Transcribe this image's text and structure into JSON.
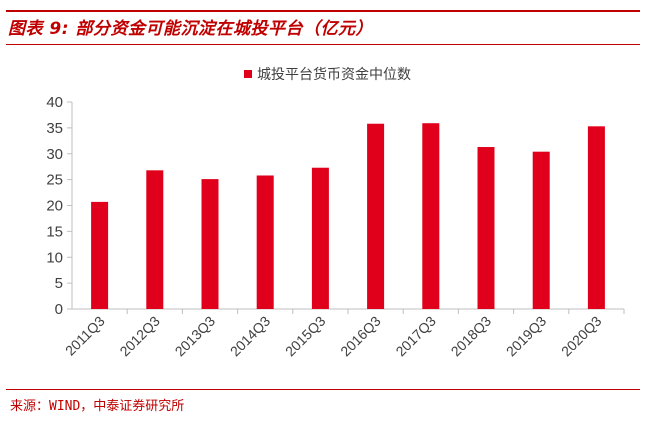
{
  "figure": {
    "title": "图表 9:  部分资金可能沉淀在城投平台（亿元）",
    "source": "来源：WIND，中泰证券研究所"
  },
  "colors": {
    "accent": "#c00000",
    "bar": "#e0001b",
    "axis": "#bfbfbf",
    "text": "#404040"
  },
  "chart_data": {
    "type": "bar",
    "title": "",
    "xlabel": "",
    "ylabel": "",
    "categories": [
      "2011Q3",
      "2012Q3",
      "2013Q3",
      "2014Q3",
      "2015Q3",
      "2016Q3",
      "2017Q3",
      "2018Q3",
      "2019Q3",
      "2020Q3"
    ],
    "series": [
      {
        "name": "城投平台货币资金中位数",
        "values": [
          20.7,
          26.8,
          25.1,
          25.8,
          27.3,
          35.8,
          35.9,
          31.3,
          30.4,
          35.3
        ]
      }
    ],
    "ylim": [
      0,
      40
    ],
    "yticks": [
      0,
      5,
      10,
      15,
      20,
      25,
      30,
      35,
      40
    ],
    "grid": false,
    "legend": "top-center"
  }
}
